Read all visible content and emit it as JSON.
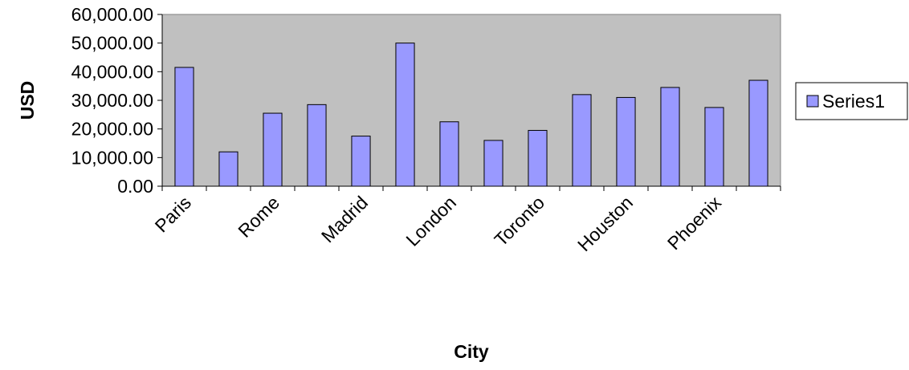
{
  "chart_data": {
    "type": "bar",
    "title": "",
    "xlabel": "City",
    "ylabel": "USD",
    "ylim": [
      0,
      60000
    ],
    "y_ticks": [
      "0.00",
      "10,000.00",
      "20,000.00",
      "30,000.00",
      "40,000.00",
      "50,000.00",
      "60,000.00"
    ],
    "categories": [
      "Paris",
      "",
      "Rome",
      "",
      "Madrid",
      "",
      "London",
      "",
      "Toronto",
      "",
      "Houston",
      "",
      "Phoenix",
      ""
    ],
    "series": [
      {
        "name": "Series1",
        "values": [
          41500,
          12000,
          25500,
          28500,
          17500,
          50000,
          22500,
          16000,
          19500,
          32000,
          31000,
          34500,
          27500,
          37000
        ]
      }
    ],
    "grid": false,
    "legend_position": "right",
    "colors": {
      "plot_background": "#c0c0c0",
      "bar_fill": "#9999ff",
      "bar_stroke": "#000000"
    }
  }
}
